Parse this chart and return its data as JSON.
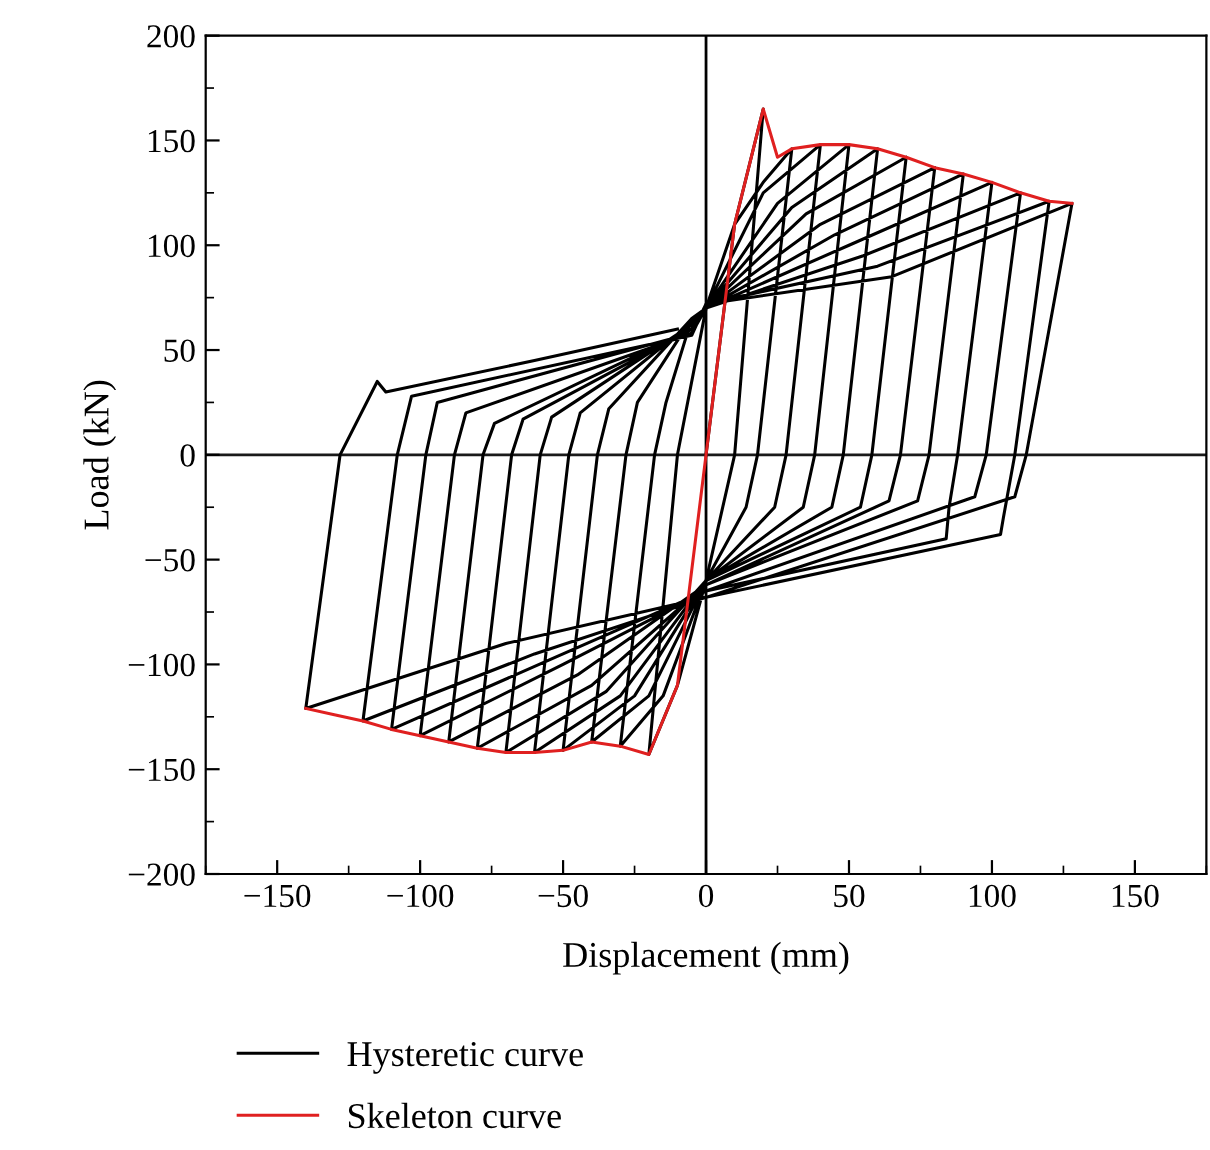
{
  "chart_data": {
    "type": "line",
    "xlabel": "Displacement (mm)",
    "ylabel": "Load (kN)",
    "xlim": [
      -175,
      175
    ],
    "ylim": [
      -200,
      200
    ],
    "xticks": [
      {
        "value": -150,
        "label": "−150"
      },
      {
        "value": -100,
        "label": "−100"
      },
      {
        "value": -50,
        "label": "−50"
      },
      0,
      50,
      100,
      150
    ],
    "yticks": [
      {
        "value": -200,
        "label": "−200"
      },
      {
        "value": -150,
        "label": "−150"
      },
      {
        "value": -100,
        "label": "−100"
      },
      {
        "value": -50,
        "label": "−50"
      },
      0,
      50,
      100,
      150,
      200
    ],
    "grid": false,
    "legend": "bottom",
    "line_style": "solid",
    "marker": "none",
    "ref_lines": [
      {
        "axis": "x",
        "value": 0,
        "color": "#000000"
      },
      {
        "axis": "y",
        "value": 0,
        "color": "#1a1a1a"
      }
    ],
    "series": [
      {
        "name": "Hysteretic curve",
        "color": "#000000",
        "x": [
          0,
          10,
          20,
          10,
          0,
          -10,
          -20,
          -10,
          0,
          10,
          20,
          30,
          18,
          14,
          0,
          -15,
          -30,
          -18,
          -14,
          -5,
          0,
          20,
          40,
          28,
          24,
          0,
          -20,
          -40,
          -28,
          -24,
          -5,
          0,
          25,
          50,
          38,
          34,
          0,
          -25,
          -50,
          -38,
          -34,
          -5,
          0,
          30,
          60,
          48,
          44,
          0,
          -30,
          -60,
          -48,
          -44,
          -5,
          0,
          35,
          70,
          58,
          54,
          0,
          -35,
          -70,
          -58,
          -54,
          -5,
          0,
          40,
          80,
          68,
          64,
          0,
          -40,
          -80,
          -68,
          -64,
          -5,
          0,
          45,
          90,
          78,
          74,
          0,
          -45,
          -90,
          -78,
          -74,
          -5,
          0,
          50,
          100,
          88,
          85,
          84,
          0,
          -50,
          -100,
          -88,
          -84,
          -5,
          0,
          55,
          110,
          98,
          94,
          0,
          -55,
          -110,
          -98,
          -94,
          -5,
          0,
          60,
          120,
          108,
          104,
          103,
          0,
          -60,
          -120,
          -108,
          -103,
          -5,
          0,
          65,
          128,
          112,
          108,
          0,
          -70,
          -140,
          -128,
          -115,
          -112,
          -60,
          -10
        ],
        "values": [
          0,
          110,
          165,
          0,
          -60,
          -110,
          -143,
          0,
          70,
          110,
          130,
          146,
          0,
          -25,
          -60,
          -115,
          -139,
          0,
          25,
          65,
          70,
          125,
          148,
          0,
          -25,
          -60,
          -115,
          -137,
          0,
          25,
          65,
          70,
          120,
          148,
          0,
          -25,
          -60,
          -115,
          -141,
          0,
          22,
          65,
          70,
          118,
          146,
          0,
          -25,
          -60,
          -115,
          -142,
          0,
          20,
          63,
          70,
          115,
          142,
          0,
          -25,
          -60,
          -113,
          -142,
          0,
          18,
          62,
          70,
          110,
          137,
          0,
          -22,
          -62,
          -110,
          -140,
          0,
          17,
          60,
          70,
          105,
          134,
          0,
          -22,
          -62,
          -105,
          -137,
          0,
          15,
          60,
          70,
          100,
          130,
          0,
          -25,
          -40,
          -65,
          -100,
          -134,
          0,
          20,
          58,
          70,
          95,
          125,
          0,
          -20,
          -65,
          -98,
          -131,
          0,
          25,
          58,
          72,
          90,
          121,
          0,
          -30,
          -38,
          -68,
          -95,
          -127,
          0,
          28,
          57,
          72,
          85,
          120,
          0,
          -20,
          -68,
          -90,
          -121,
          0,
          35,
          30,
          45,
          60
        ]
      },
      {
        "name": "Skeleton curve",
        "color": "#e02020",
        "x": [
          -140,
          -130,
          -120,
          -110,
          -100,
          -90,
          -80,
          -70,
          -60,
          -50,
          -40,
          -30,
          -20,
          -10,
          0,
          10,
          20,
          25,
          30,
          40,
          50,
          60,
          70,
          80,
          90,
          100,
          110,
          120,
          128
        ],
        "values": [
          -121,
          -124,
          -127,
          -131,
          -134,
          -137,
          -140,
          -142,
          -142,
          -141,
          -137,
          -139,
          -143,
          -110,
          0,
          110,
          165,
          142,
          146,
          148,
          148,
          146,
          142,
          137,
          134,
          130,
          125,
          121,
          120
        ]
      }
    ]
  }
}
